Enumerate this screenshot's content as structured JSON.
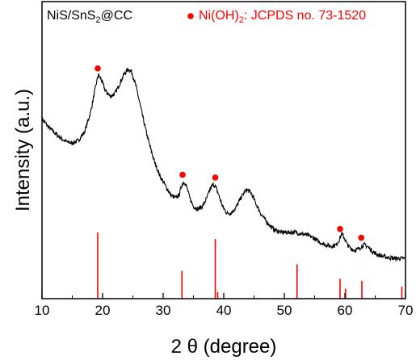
{
  "chart_data": {
    "type": "line",
    "xlabel": "2 θ (degree)",
    "ylabel": "Intensity (a.u.)",
    "xlim": [
      10,
      70
    ],
    "x_ticks": [
      10,
      20,
      30,
      40,
      50,
      60,
      70
    ],
    "sample_label": {
      "main": "NiS/SnS",
      "sub": "2",
      "end": "@CC"
    },
    "reference_label": {
      "main": "Ni(OH)",
      "sub": "2",
      "end": ": JCPDS no. 73-1520"
    },
    "colors": {
      "pattern": "#000000",
      "reference": "#ff0000"
    },
    "series": [
      {
        "x": [
          10,
          11,
          12,
          13,
          14,
          15,
          16,
          17,
          18,
          18.8,
          19.3,
          19.8,
          20.5,
          21.3,
          22,
          22.7,
          23.5,
          24.2,
          24.8,
          25.5,
          26.3,
          27,
          27.8,
          28.6,
          29.5,
          30.5,
          31.3,
          32,
          32.6,
          33.1,
          33.5,
          33.9,
          34.4,
          35,
          35.7,
          36.5,
          37.2,
          37.8,
          38.3,
          38.7,
          39.2,
          39.8,
          40.5,
          41.2,
          42,
          42.8,
          43.5,
          44,
          44.6,
          45.3,
          46.2,
          47.2,
          48.3,
          49.5,
          50.7,
          51.8,
          52.8,
          53.8,
          54.8,
          55.8,
          56.8,
          57.8,
          58.6,
          59.1,
          59.5,
          59.9,
          60.4,
          61,
          61.7,
          62.3,
          62.8,
          63.3,
          63.9,
          64.6,
          65.3,
          66,
          66.8,
          67.6,
          68.4,
          69.2,
          70
        ],
        "y": [
          53,
          50,
          48,
          46,
          44.5,
          44,
          45,
          48,
          55,
          64,
          69,
          67,
          63,
          61,
          62,
          65,
          69,
          71,
          70,
          65,
          57,
          50,
          43,
          37,
          32,
          28,
          25,
          24,
          25,
          29,
          30,
          28,
          24,
          21,
          20,
          21,
          24,
          27.5,
          29,
          28,
          25,
          21,
          18.5,
          18.5,
          20.5,
          24,
          26.5,
          27,
          25.5,
          22,
          18,
          15,
          12.5,
          11.5,
          11.5,
          11.5,
          11,
          10.5,
          9.5,
          8,
          7,
          6.5,
          7,
          9,
          11,
          9.5,
          7,
          5.5,
          5,
          5.5,
          6.5,
          7,
          6,
          4.5,
          3.5,
          3,
          2.5,
          2.2,
          2,
          2,
          2
        ]
      }
    ],
    "peak_markers": [
      19.2,
      33.2,
      38.6,
      59.2,
      62.7
    ],
    "reference_lines": [
      {
        "x": 19.2,
        "rel_intensity": 100
      },
      {
        "x": 33.1,
        "rel_intensity": 42
      },
      {
        "x": 38.6,
        "rel_intensity": 90
      },
      {
        "x": 39.0,
        "rel_intensity": 10
      },
      {
        "x": 52.1,
        "rel_intensity": 52
      },
      {
        "x": 59.2,
        "rel_intensity": 30
      },
      {
        "x": 60.1,
        "rel_intensity": 15
      },
      {
        "x": 62.8,
        "rel_intensity": 27
      },
      {
        "x": 69.4,
        "rel_intensity": 18
      }
    ]
  }
}
